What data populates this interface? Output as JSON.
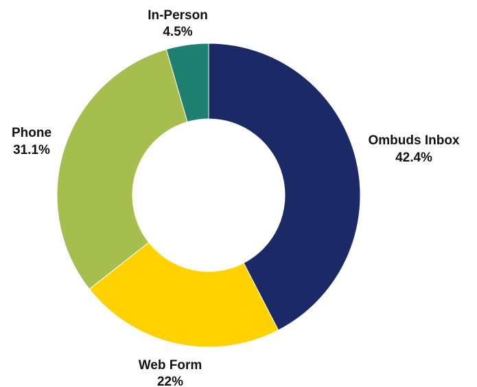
{
  "chart_data": {
    "type": "pie",
    "style": "donut",
    "title": "",
    "slices": [
      {
        "label": "Ombuds Inbox",
        "value_label": "42.4%",
        "value": 42.4,
        "color": "#1b2a66"
      },
      {
        "label": "Web Form",
        "value_label": "22%",
        "value": 22.0,
        "color": "#ffd200"
      },
      {
        "label": "Phone",
        "value_label": "31.1%",
        "value": 31.1,
        "color": "#a6be4e"
      },
      {
        "label": "In-Person",
        "value_label": "4.5%",
        "value": 4.5,
        "color": "#1e8070"
      }
    ],
    "start_angle_deg": 0,
    "direction": "clockwise",
    "legend": "none",
    "labels_placement": "outside"
  }
}
